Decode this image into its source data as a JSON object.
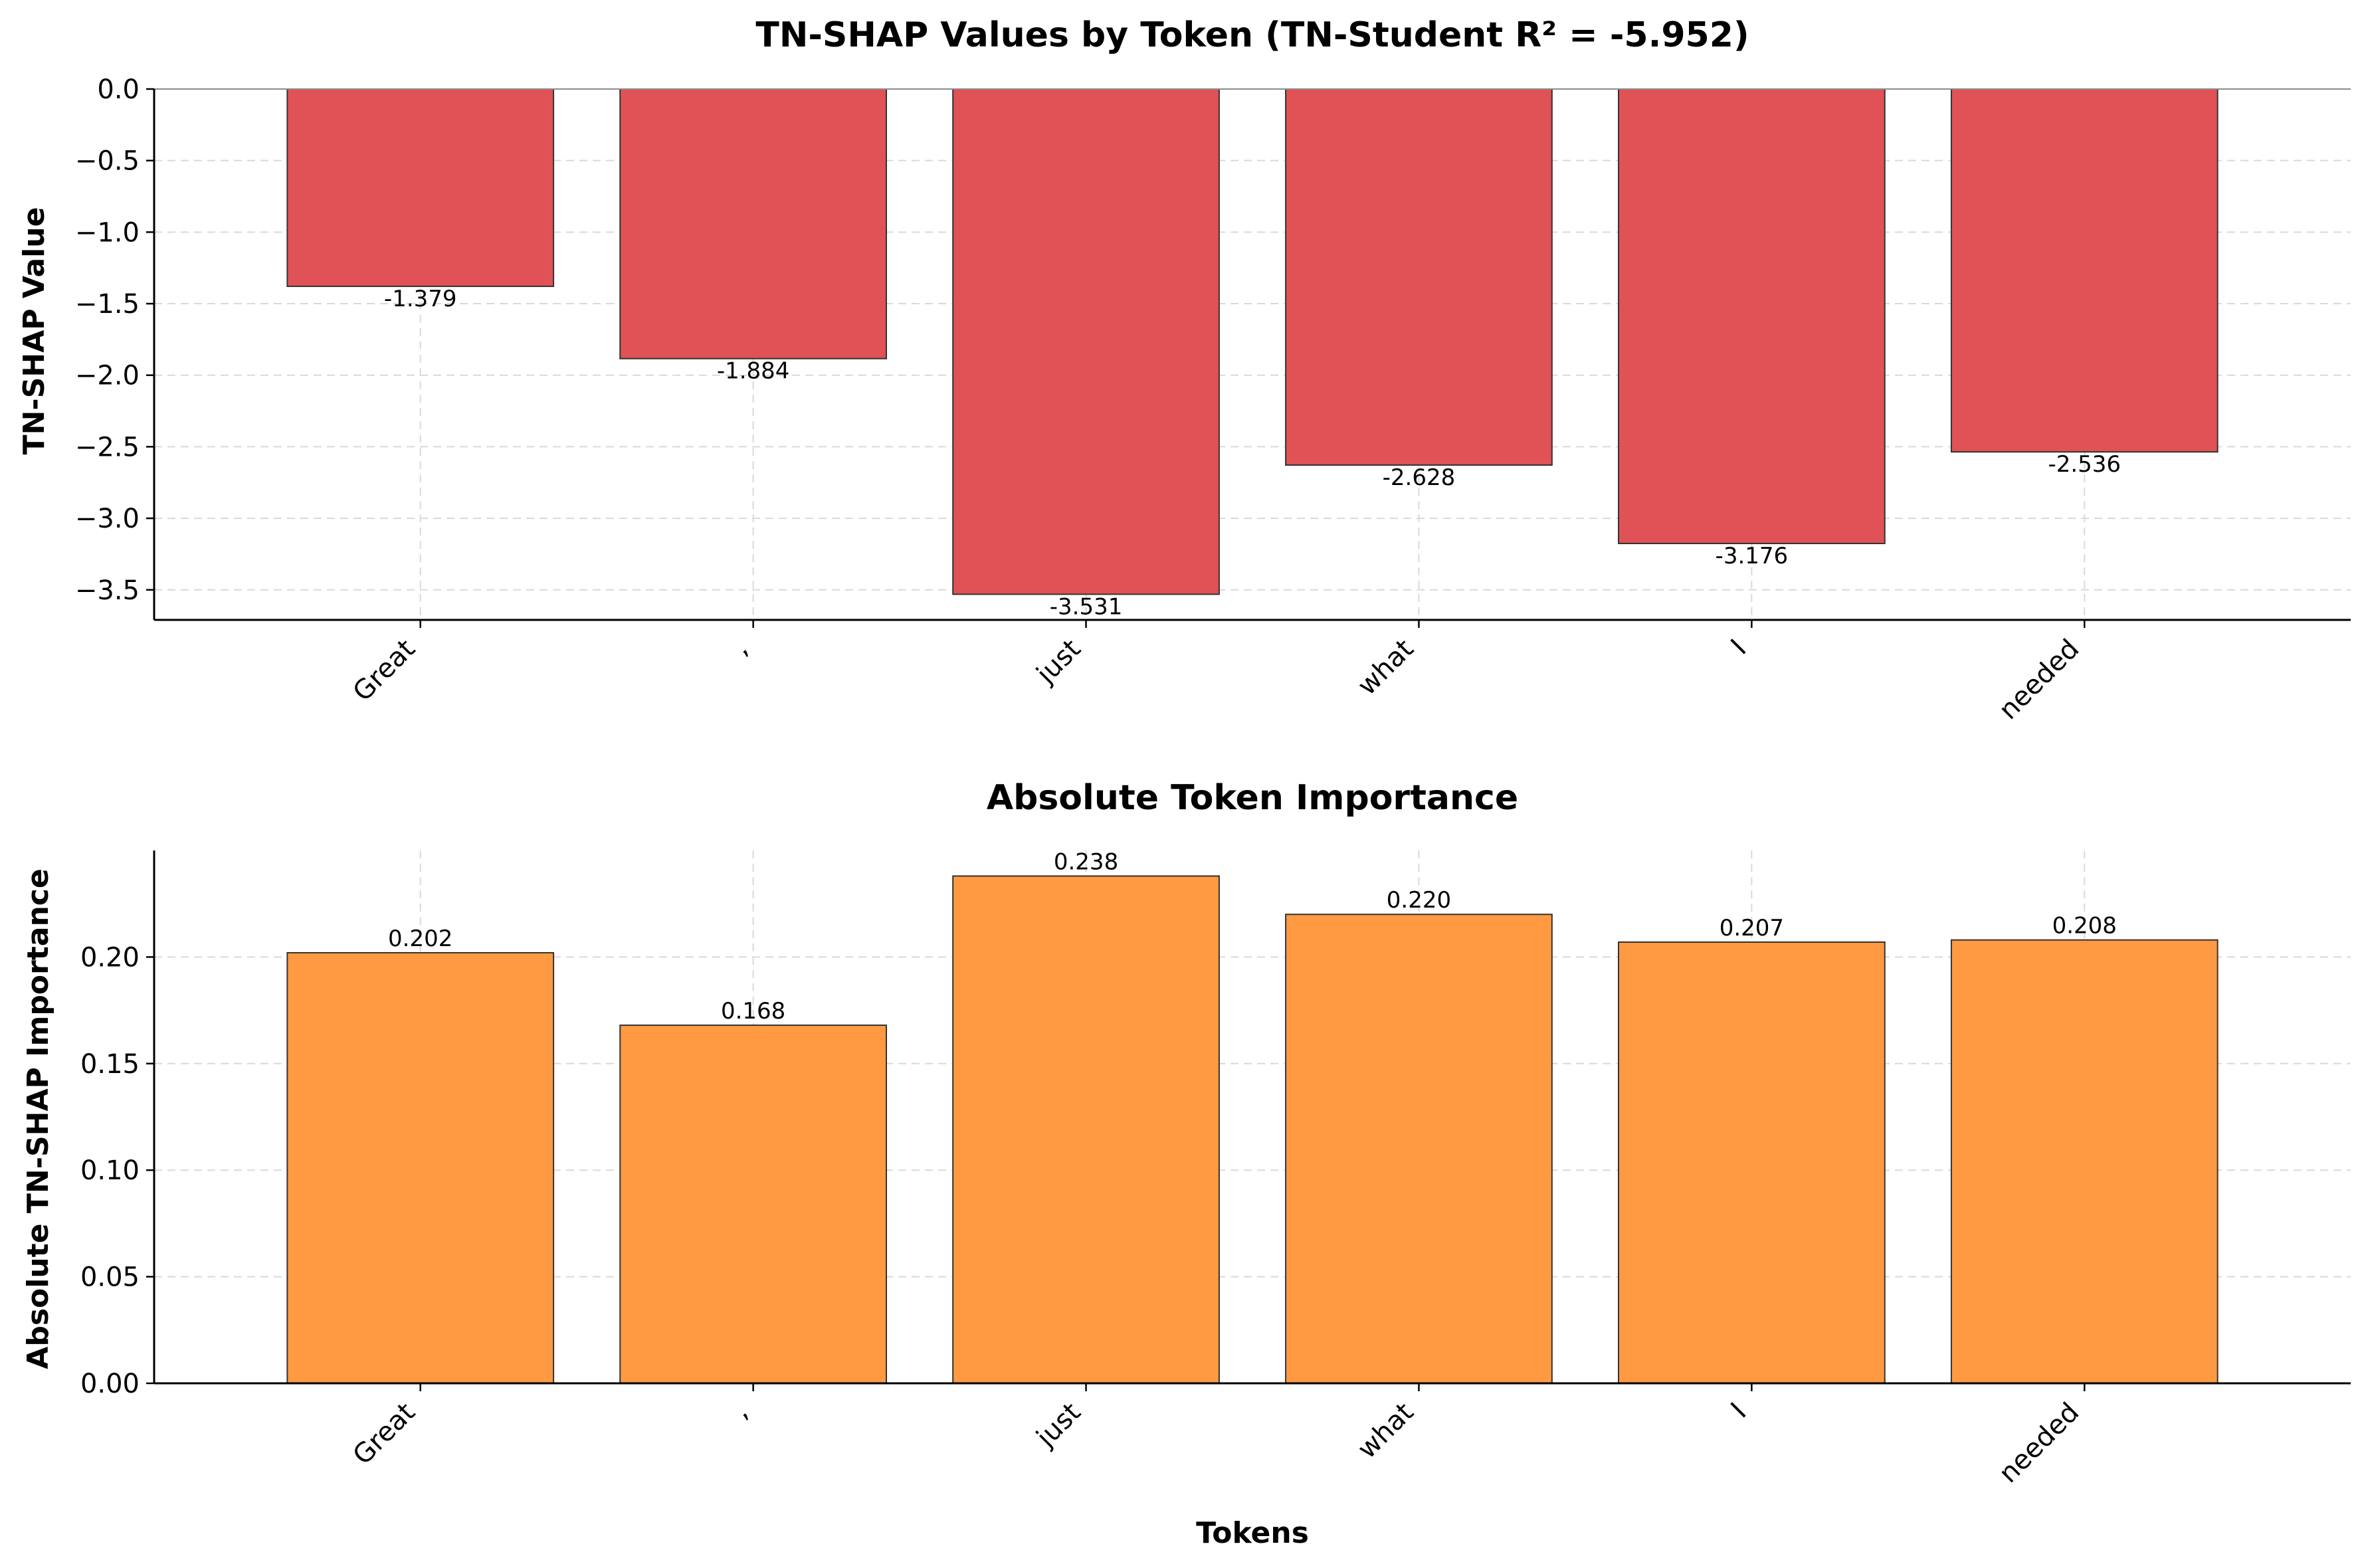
{
  "chart_data": [
    {
      "type": "bar",
      "title": "TN-SHAP Values by Token (TN-Student R² = -5.952)",
      "xlabel": "",
      "ylabel": "TN-SHAP Value",
      "categories": [
        "Great",
        ",",
        "just",
        "what",
        "I",
        "needed"
      ],
      "values": [
        -1.379,
        -1.884,
        -3.531,
        -2.628,
        -3.176,
        -2.536
      ],
      "value_labels": [
        "-1.379",
        "-1.884",
        "-3.531",
        "-2.628",
        "-3.176",
        "-2.536"
      ],
      "ylim": [
        -3.71,
        0.0
      ],
      "yticks": [
        0.0,
        -0.5,
        -1.0,
        -1.5,
        -2.0,
        -2.5,
        -3.0,
        -3.5
      ],
      "ytick_labels": [
        "0.0",
        "−0.5",
        "−1.0",
        "−1.5",
        "−2.0",
        "−2.5",
        "−3.0",
        "−3.5"
      ],
      "grid": true,
      "bar_color": "#e05255",
      "edge_color": "#333333"
    },
    {
      "type": "bar",
      "title": "Absolute Token Importance",
      "xlabel": "Tokens",
      "ylabel": "Absolute TN-SHAP Importance",
      "categories": [
        "Great",
        ",",
        "just",
        "what",
        "I",
        "needed"
      ],
      "values": [
        0.202,
        0.168,
        0.238,
        0.22,
        0.207,
        0.208
      ],
      "value_labels": [
        "0.202",
        "0.168",
        "0.238",
        "0.220",
        "0.207",
        "0.208"
      ],
      "ylim": [
        0.0,
        0.25
      ],
      "yticks": [
        0.0,
        0.05,
        0.1,
        0.15,
        0.2
      ],
      "ytick_labels": [
        "0.00",
        "0.05",
        "0.10",
        "0.15",
        "0.20"
      ],
      "grid": true,
      "bar_color": "#ff9a42",
      "edge_color": "#333333"
    }
  ]
}
